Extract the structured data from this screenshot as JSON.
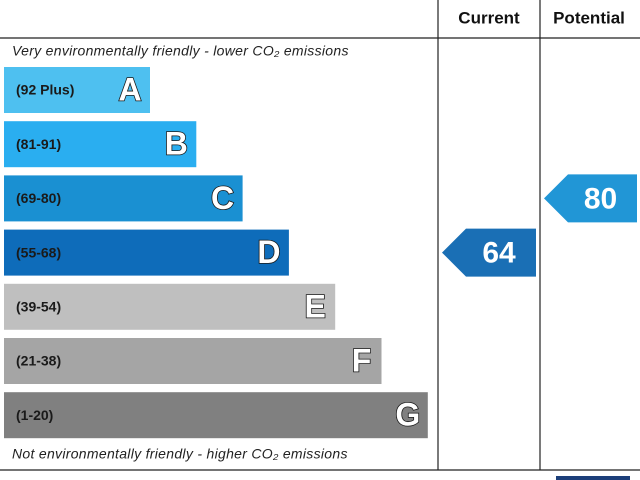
{
  "header": {
    "columns": [
      "Current",
      "Potential"
    ]
  },
  "top_note": "Very environmentally friendly - lower CO₂ emissions",
  "bottom_note": "Not environmentally friendly - higher CO₂ emissions",
  "bands": [
    {
      "range": "(92 Plus)",
      "letter": "A",
      "color": "#4ec0f0"
    },
    {
      "range": "(81-91)",
      "letter": "B",
      "color": "#2aaef0"
    },
    {
      "range": "(69-80)",
      "letter": "C",
      "color": "#1a90d2"
    },
    {
      "range": "(55-68)",
      "letter": "D",
      "color": "#0e6cba"
    },
    {
      "range": "(39-54)",
      "letter": "E",
      "color": "#bfbfbf"
    },
    {
      "range": "(21-38)",
      "letter": "F",
      "color": "#a5a5a5"
    },
    {
      "range": "(1-20)",
      "letter": "G",
      "color": "#808080"
    }
  ],
  "current": {
    "value": 64,
    "color": "#1a6fb5"
  },
  "potential": {
    "value": 80,
    "color": "#2196d6"
  }
}
